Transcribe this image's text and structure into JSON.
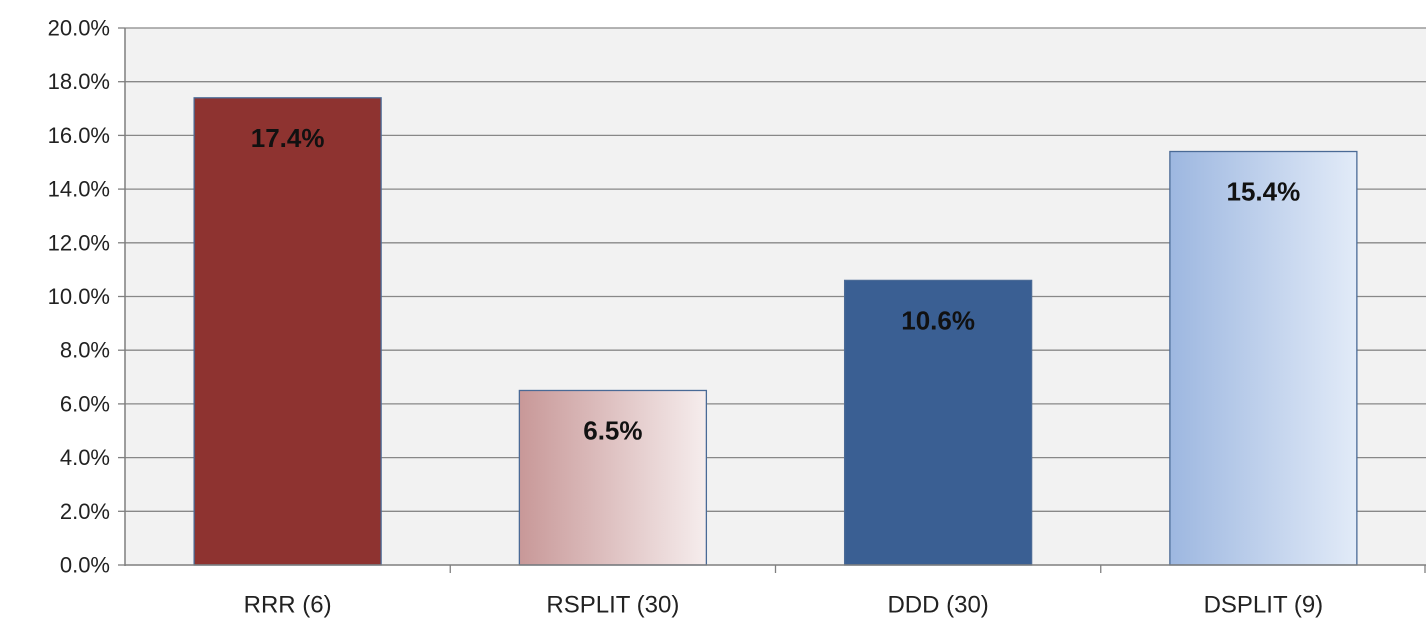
{
  "chart_data": {
    "type": "bar",
    "title": "",
    "xlabel": "",
    "ylabel": "",
    "categories": [
      "RRR (6)",
      "RSPLIT (30)",
      "DDD (30)",
      "DSPLIT (9)"
    ],
    "values": [
      17.4,
      6.5,
      10.6,
      15.4
    ],
    "data_labels": [
      "17.4%",
      "6.5%",
      "10.6%",
      "15.4%"
    ],
    "ylim": [
      0,
      20
    ],
    "y_ticks": [
      0,
      2,
      4,
      6,
      8,
      10,
      12,
      14,
      16,
      18,
      20
    ],
    "y_tick_labels": [
      "0.0%",
      "2.0%",
      "4.0%",
      "6.0%",
      "8.0%",
      "10.0%",
      "12.0%",
      "14.0%",
      "16.0%",
      "18.0%",
      "20.0%"
    ],
    "grid": true,
    "legend": "none",
    "colors": {
      "plot_background": "#f2f2f2",
      "gridline": "#888888",
      "axis": "#7f7f7f",
      "bars": [
        {
          "from": "#8e3330",
          "to": "#8e3330"
        },
        {
          "from": "#c89898",
          "to": "#f6eded"
        },
        {
          "from": "#3a5f93",
          "to": "#3a5f93"
        },
        {
          "from": "#9db7e0",
          "to": "#e2ebf8"
        }
      ],
      "bar_border": "#4a6a96"
    }
  }
}
